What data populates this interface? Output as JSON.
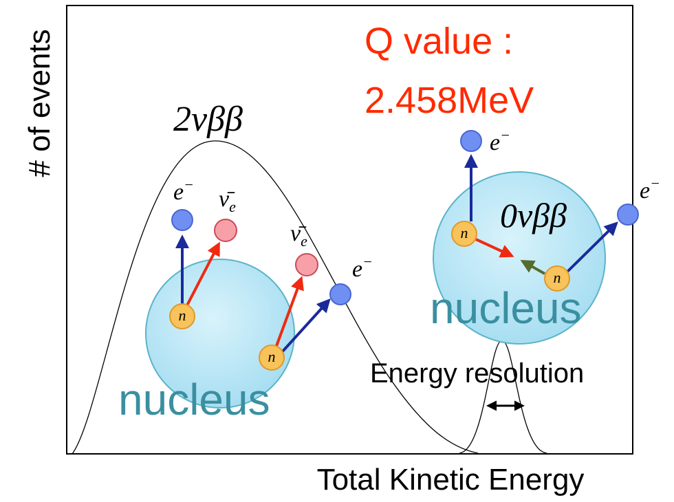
{
  "axes": {
    "y_label": "# of events",
    "x_label": "Total Kinetic Energy"
  },
  "q_value": {
    "label": "Q value :",
    "value": "2.458MeV"
  },
  "spectra": {
    "two_neutrino": "2νββ",
    "zero_neutrino": "0νββ",
    "resolution_label": "Energy resolution"
  },
  "left_nucleus": {
    "label": "nucleus",
    "neutrons": [
      "n",
      "n"
    ],
    "electrons": [
      {
        "symbol": "e",
        "charge": "−"
      },
      {
        "symbol": "e",
        "charge": "−"
      }
    ],
    "antineutrinos": [
      {
        "symbol": "ν̄",
        "subscript": "e"
      },
      {
        "symbol": "ν̄",
        "subscript": "e"
      }
    ]
  },
  "right_nucleus": {
    "label": "nucleus",
    "neutrons": [
      "n",
      "n"
    ],
    "electrons": [
      {
        "symbol": "e",
        "charge": "−"
      },
      {
        "symbol": "e",
        "charge": "−"
      }
    ]
  }
}
